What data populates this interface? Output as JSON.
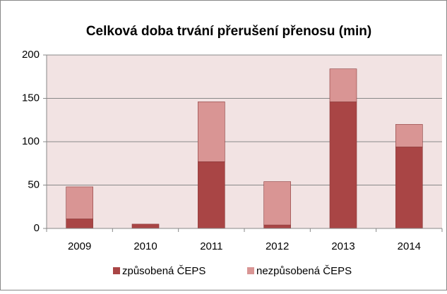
{
  "chart_data": {
    "type": "stacked_bar",
    "title": "Celková doba trvání přerušení přenosu (min)",
    "categories": [
      "2009",
      "2010",
      "2011",
      "2012",
      "2013",
      "2014"
    ],
    "series": [
      {
        "name": "způsobená ČEPS",
        "color": "#a94545",
        "values": [
          11,
          5,
          77,
          4,
          146,
          94
        ]
      },
      {
        "name": "nezpůsobená ČEPS",
        "color": "#d99594",
        "values": [
          37,
          0,
          69,
          50,
          38,
          26
        ]
      }
    ],
    "ylim": [
      0,
      200
    ],
    "yticks": [
      0,
      50,
      100,
      150,
      200
    ],
    "grid": true,
    "legend": "bottom"
  }
}
